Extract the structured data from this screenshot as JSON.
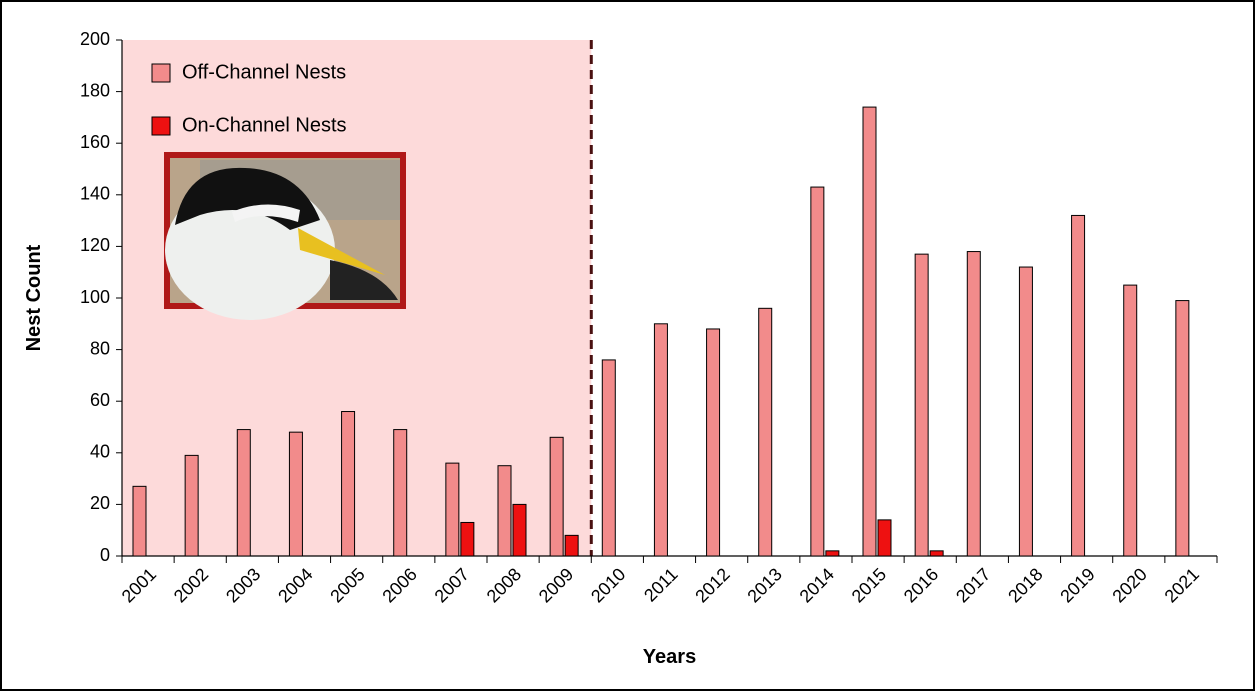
{
  "chart_data": {
    "type": "bar",
    "x_label": "Years",
    "y_label": "Nest Count",
    "categories": [
      "2001",
      "2002",
      "2003",
      "2004",
      "2005",
      "2006",
      "2007",
      "2008",
      "2009",
      "2010",
      "2011",
      "2012",
      "2013",
      "2014",
      "2015",
      "2016",
      "2017",
      "2018",
      "2019",
      "2020",
      "2021"
    ],
    "series": [
      {
        "name": "Off-Channel Nests",
        "color": "#f28b8b",
        "values": [
          27,
          39,
          49,
          48,
          56,
          49,
          36,
          35,
          46,
          76,
          90,
          88,
          96,
          143,
          174,
          117,
          118,
          112,
          132,
          105,
          99
        ]
      },
      {
        "name": "On-Channel Nests",
        "color": "#ee1111",
        "values": [
          0,
          0,
          0,
          0,
          0,
          0,
          13,
          20,
          8,
          0,
          0,
          0,
          0,
          2,
          14,
          2,
          0,
          0,
          0,
          0,
          0
        ]
      }
    ],
    "ylim": [
      0,
      200
    ],
    "yticks": [
      0,
      20,
      40,
      60,
      80,
      100,
      120,
      140,
      160,
      180,
      200
    ],
    "legend": "top-left"
  }
}
